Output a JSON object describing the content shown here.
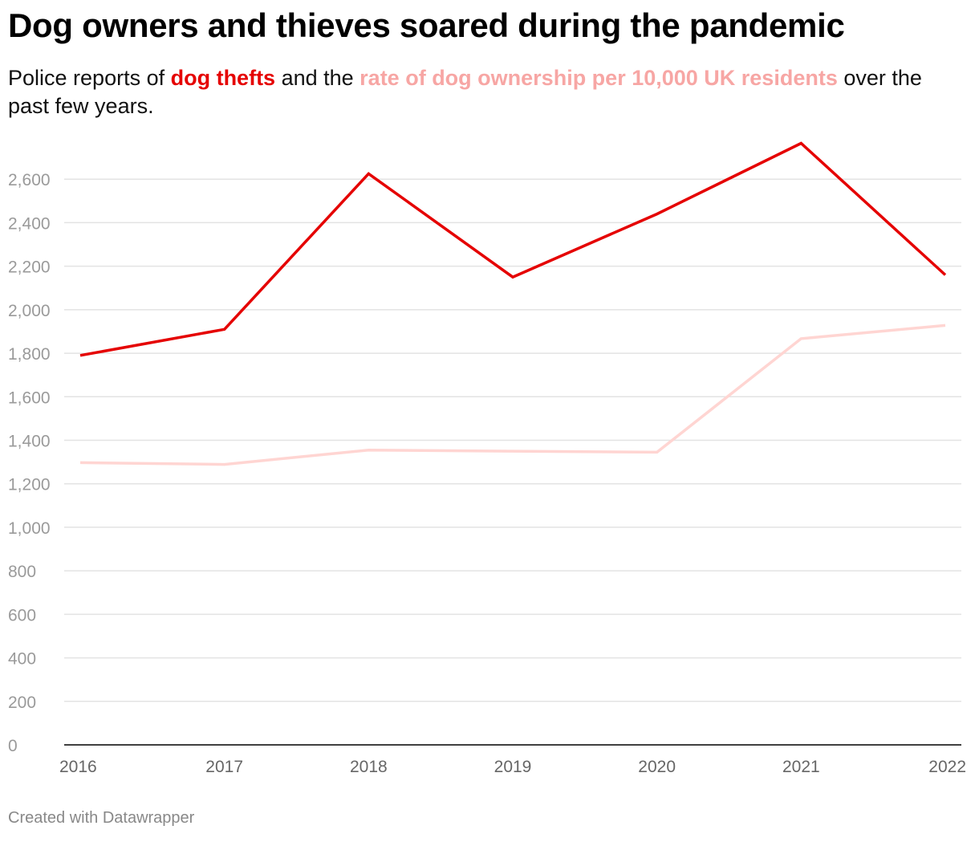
{
  "title": "Dog owners and thieves soared during the pandemic",
  "subtitle": {
    "part1": "Police reports of ",
    "hl1": "dog thefts",
    "part2": " and the ",
    "hl2": "rate of dog ownership per 10,000 UK residents",
    "part3": " over the past few years."
  },
  "footer": "Created with Datawrapper",
  "colors": {
    "thefts": "#e50000",
    "ownership": "#ffd5d2",
    "ownership_text": "#f7a6a4",
    "grid": "#e3e3e3",
    "axis": "#000000"
  },
  "chart_data": {
    "type": "line",
    "title": "Dog owners and thieves soared during the pandemic",
    "xlabel": "",
    "ylabel": "",
    "x": [
      "2016",
      "2017",
      "2018",
      "2019",
      "2020",
      "2021",
      "2022"
    ],
    "yticks": [
      0,
      200,
      400,
      600,
      800,
      1000,
      1200,
      1400,
      1600,
      1800,
      2000,
      2200,
      2400,
      2600
    ],
    "ytick_labels": [
      "0",
      "200",
      "400",
      "600",
      "800",
      "1,000",
      "1,200",
      "1,400",
      "1,600",
      "1,800",
      "2,000",
      "2,200",
      "2,400",
      "2,600"
    ],
    "ylim": [
      0,
      2800
    ],
    "grid": true,
    "series": [
      {
        "name": "dog thefts",
        "color": "#e50000",
        "values": [
          1790,
          1910,
          2625,
          2150,
          2440,
          2765,
          2160
        ]
      },
      {
        "name": "rate of dog ownership per 10,000 UK residents",
        "color": "#ffd5d2",
        "values": [
          1297,
          1289,
          1355,
          1350,
          1345,
          1867,
          1928
        ]
      }
    ]
  }
}
